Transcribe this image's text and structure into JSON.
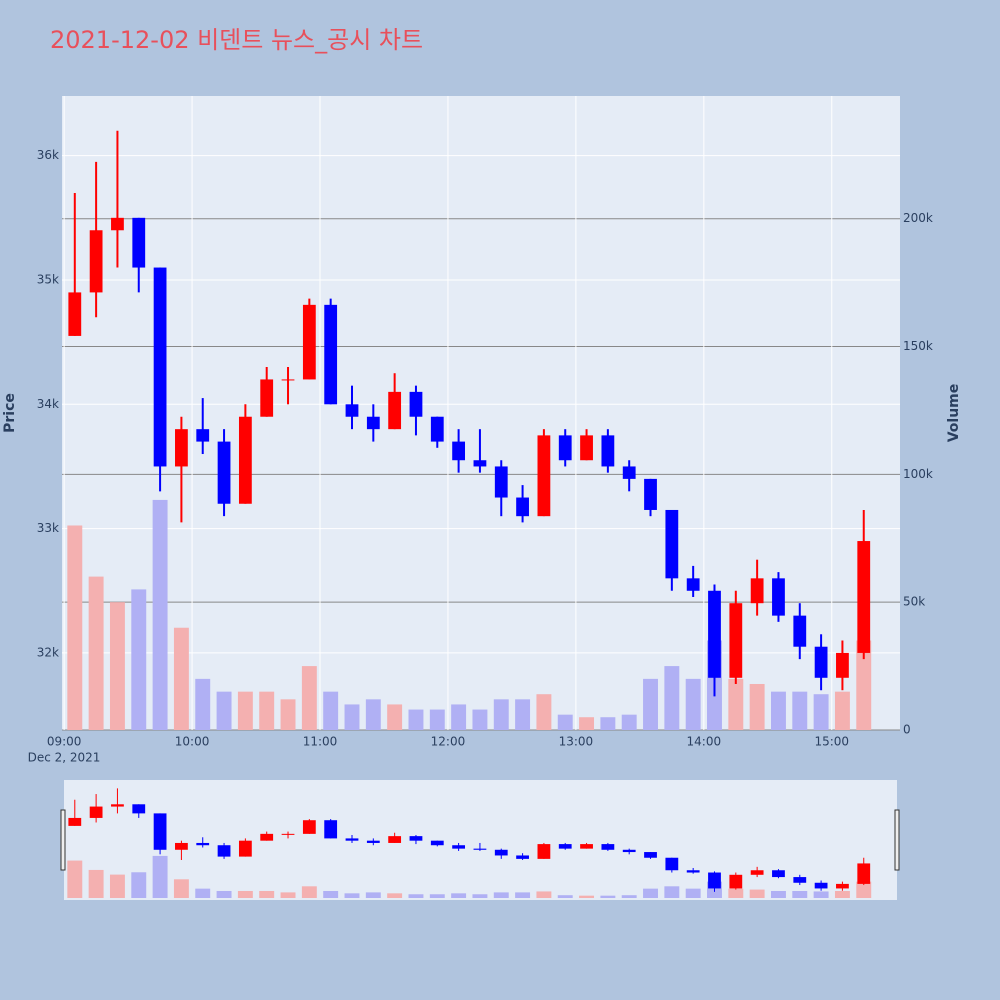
{
  "chart_data": {
    "type": "candlestick",
    "title": "2021-12-02 비덴트 뉴스_공시 차트",
    "x_date_label": "Dec 2, 2021",
    "ylabel": "Price",
    "y2label": "Volume",
    "x": [
      "2021-12-02 09:00",
      "2021-12-02 09:10",
      "2021-12-02 09:20",
      "2021-12-02 09:30",
      "2021-12-02 09:40",
      "2021-12-02 09:50",
      "2021-12-02 10:00",
      "2021-12-02 10:10",
      "2021-12-02 10:20",
      "2021-12-02 10:30",
      "2021-12-02 10:40",
      "2021-12-02 10:50",
      "2021-12-02 11:00",
      "2021-12-02 11:10",
      "2021-12-02 11:20",
      "2021-12-02 11:30",
      "2021-12-02 11:40",
      "2021-12-02 11:50",
      "2021-12-02 12:00",
      "2021-12-02 12:10",
      "2021-12-02 12:20",
      "2021-12-02 12:30",
      "2021-12-02 12:40",
      "2021-12-02 12:50",
      "2021-12-02 13:00",
      "2021-12-02 13:10",
      "2021-12-02 13:20",
      "2021-12-02 13:30",
      "2021-12-02 13:40",
      "2021-12-02 13:50",
      "2021-12-02 14:00",
      "2021-12-02 14:10",
      "2021-12-02 14:20",
      "2021-12-02 14:30",
      "2021-12-02 14:40",
      "2021-12-02 14:50",
      "2021-12-02 15:00",
      "2021-12-02 15:10"
    ],
    "open": [
      34550,
      34900,
      35400,
      35500,
      35100,
      33500,
      33800,
      33700,
      33200,
      33900,
      34200,
      34200,
      34800,
      34000,
      33900,
      33800,
      34100,
      33900,
      33700,
      33550,
      33500,
      33250,
      33100,
      33750,
      33550,
      33750,
      33500,
      33400,
      33150,
      32600,
      32500,
      31800,
      32400,
      32600,
      32300,
      32050,
      31800,
      32000
    ],
    "high": [
      35700,
      35950,
      36200,
      35500,
      35100,
      33900,
      34050,
      33800,
      34000,
      34300,
      34300,
      34850,
      34850,
      34150,
      34000,
      34250,
      34150,
      33900,
      33800,
      33800,
      33550,
      33350,
      33800,
      33800,
      33800,
      33800,
      33550,
      33400,
      33150,
      32700,
      32550,
      32500,
      32750,
      32650,
      32400,
      32150,
      32100,
      33150
    ],
    "low": [
      34550,
      34700,
      35100,
      34900,
      33300,
      33050,
      33600,
      33100,
      33200,
      33900,
      34000,
      34200,
      34000,
      33800,
      33700,
      33800,
      33750,
      33650,
      33450,
      33450,
      33100,
      33050,
      33100,
      33500,
      33550,
      33450,
      33300,
      33100,
      32500,
      32450,
      31650,
      31750,
      32300,
      32250,
      31950,
      31700,
      31700,
      31950
    ],
    "close": [
      34900,
      35400,
      35500,
      35100,
      33500,
      33800,
      33700,
      33200,
      33900,
      34200,
      34200,
      34800,
      34000,
      33900,
      33800,
      34100,
      33900,
      33700,
      33550,
      33500,
      33250,
      33100,
      33750,
      33550,
      33750,
      33500,
      33400,
      33150,
      32600,
      32500,
      31800,
      32400,
      32600,
      32300,
      32050,
      31800,
      32000,
      32900
    ],
    "volume": [
      80000,
      60000,
      50000,
      55000,
      90000,
      40000,
      20000,
      15000,
      15000,
      15000,
      12000,
      25000,
      15000,
      10000,
      12000,
      10000,
      8000,
      8000,
      10000,
      8000,
      12000,
      12000,
      14000,
      6000,
      5000,
      5000,
      6000,
      20000,
      25000,
      20000,
      35000,
      20000,
      18000,
      15000,
      15000,
      14000,
      15000,
      35000
    ],
    "increasing_color": "#ff0000",
    "decreasing_color": "#0000ff",
    "volume_increasing_color": "#f4b0b0",
    "volume_decreasing_color": "#b0b0f4",
    "xlim": [
      "2021-12-02 08:59",
      "2021-12-02 15:32"
    ],
    "xticks": [
      {
        "value": "2021-12-02 09:00",
        "label": "09:00"
      },
      {
        "value": "2021-12-02 10:00",
        "label": "10:00"
      },
      {
        "value": "2021-12-02 11:00",
        "label": "11:00"
      },
      {
        "value": "2021-12-02 12:00",
        "label": "12:00"
      },
      {
        "value": "2021-12-02 13:00",
        "label": "13:00"
      },
      {
        "value": "2021-12-02 14:00",
        "label": "14:00"
      },
      {
        "value": "2021-12-02 15:00",
        "label": "15:00"
      }
    ],
    "ylim": [
      31380,
      36480
    ],
    "yticks": [
      {
        "value": 32000,
        "label": "32k"
      },
      {
        "value": 33000,
        "label": "33k"
      },
      {
        "value": 34000,
        "label": "34k"
      },
      {
        "value": 35000,
        "label": "35k"
      },
      {
        "value": 36000,
        "label": "36k"
      }
    ],
    "y2lim": [
      0,
      248000
    ],
    "y2ticks": [
      0,
      {
        "value": 50000,
        "label": "50k"
      },
      {
        "value": 100000,
        "label": "100k"
      },
      {
        "value": 150000,
        "label": "150k"
      },
      {
        "value": 200000,
        "label": "200k"
      }
    ],
    "grid": true,
    "rangeslider": true
  }
}
